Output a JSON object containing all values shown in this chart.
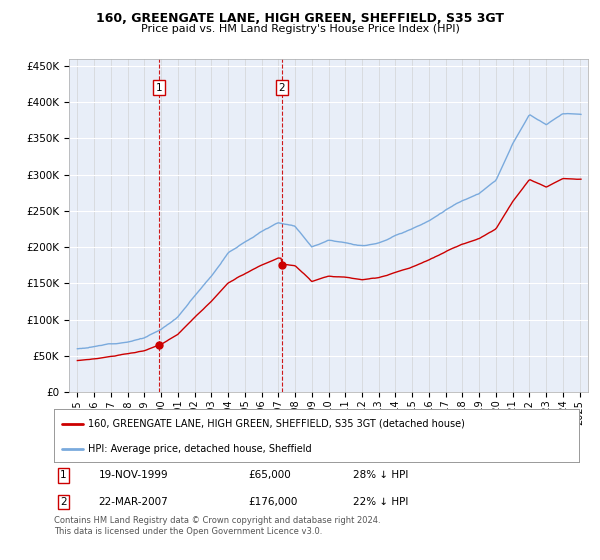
{
  "title": "160, GREENGATE LANE, HIGH GREEN, SHEFFIELD, S35 3GT",
  "subtitle": "Price paid vs. HM Land Registry's House Price Index (HPI)",
  "legend_line1": "160, GREENGATE LANE, HIGH GREEN, SHEFFIELD, S35 3GT (detached house)",
  "legend_line2": "HPI: Average price, detached house, Sheffield",
  "footnote": "Contains HM Land Registry data © Crown copyright and database right 2024.\nThis data is licensed under the Open Government Licence v3.0.",
  "sale1_label": "1",
  "sale1_date": "19-NOV-1999",
  "sale1_price": "£65,000",
  "sale1_hpi": "28% ↓ HPI",
  "sale1_year": 1999.88,
  "sale1_value": 65000,
  "sale2_label": "2",
  "sale2_date": "22-MAR-2007",
  "sale2_price": "£176,000",
  "sale2_hpi": "22% ↓ HPI",
  "sale2_year": 2007.22,
  "sale2_value": 176000,
  "hpi_color": "#7aaadd",
  "price_color": "#cc0000",
  "vline_color": "#cc0000",
  "background_color": "#e8eef8",
  "ylim": [
    0,
    460000
  ],
  "xlim_start": 1994.5,
  "xlim_end": 2025.5,
  "hpi_keypoints_years": [
    1995,
    1996,
    1997,
    1998,
    1999,
    2000,
    2001,
    2002,
    2003,
    2004,
    2005,
    2006,
    2007,
    2008,
    2009,
    2010,
    2011,
    2012,
    2013,
    2014,
    2015,
    2016,
    2017,
    2018,
    2019,
    2020,
    2021,
    2022,
    2023,
    2024
  ],
  "hpi_keypoints_vals": [
    55000,
    58000,
    62000,
    66000,
    72000,
    83000,
    100000,
    130000,
    158000,
    190000,
    205000,
    220000,
    232000,
    228000,
    200000,
    210000,
    208000,
    203000,
    208000,
    218000,
    228000,
    240000,
    255000,
    268000,
    278000,
    295000,
    345000,
    385000,
    370000,
    385000
  ]
}
